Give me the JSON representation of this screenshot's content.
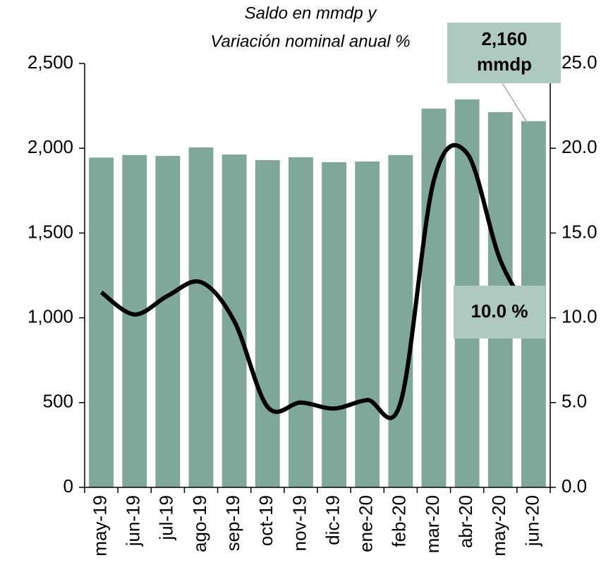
{
  "chart_data": {
    "type": "bar",
    "subtitle": [
      "Saldo en mmdp y",
      "Variación nominal anual  %"
    ],
    "categories": [
      "may-19",
      "jun-19",
      "jul-19",
      "ago-19",
      "sep-19",
      "oct-19",
      "nov-19",
      "dic-19",
      "ene-20",
      "feb-20",
      "mar-20",
      "abr-20",
      "may-20",
      "jun-20"
    ],
    "series": [
      {
        "name": "Saldo",
        "type": "bar",
        "color": "#7fa89b",
        "values": [
          1945,
          1960,
          1955,
          2005,
          1963,
          1930,
          1947,
          1918,
          1922,
          1960,
          2234,
          2288,
          2213,
          2160
        ],
        "value_labels": [
          null,
          null,
          null,
          null,
          null,
          null,
          null,
          null,
          null,
          null,
          null,
          null,
          null,
          "2,160"
        ],
        "unit": "mmdp"
      },
      {
        "name": "Variación nominal anual",
        "type": "line",
        "axis": "y2",
        "color": "#000000",
        "values": [
          11.5,
          10.2,
          11.3,
          12.1,
          9.8,
          4.75,
          5.0,
          4.65,
          5.15,
          5.0,
          18.1,
          19.7,
          13.4,
          10.0
        ],
        "value_labels": [
          null,
          null,
          null,
          null,
          null,
          null,
          null,
          null,
          null,
          null,
          null,
          null,
          null,
          "10.0 %"
        ]
      }
    ],
    "ylim": [
      0,
      2500
    ],
    "yticks": [
      0,
      500,
      {
        "value": 1000,
        "label": "1,000"
      },
      {
        "value": 1500,
        "label": "1,500"
      },
      {
        "value": 2000,
        "label": "2,000"
      },
      {
        "value": 2500,
        "label": "2,500"
      }
    ],
    "y2lim": [
      0,
      25
    ],
    "y2ticks": [
      {
        "value": 0,
        "label": "0.0"
      },
      {
        "value": 5,
        "label": "5.0"
      },
      {
        "value": 10,
        "label": "10.0"
      },
      {
        "value": 15,
        "label": "15.0"
      },
      {
        "value": 20,
        "label": "20.0"
      },
      {
        "value": 25,
        "label": "25.0"
      }
    ],
    "grid": false
  }
}
